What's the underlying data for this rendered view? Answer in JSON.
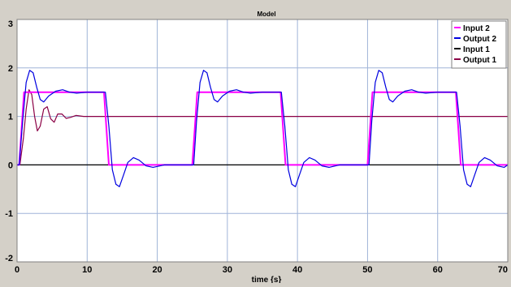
{
  "chart_data": {
    "type": "line",
    "title": "Model",
    "xlabel": "time {s}",
    "ylabel": "",
    "xlim": [
      0,
      70
    ],
    "ylim": [
      -2,
      3
    ],
    "x_ticks": [
      0,
      10,
      20,
      30,
      40,
      50,
      60,
      70
    ],
    "y_ticks": [
      -2,
      -1,
      0,
      1,
      2,
      3
    ],
    "grid": true,
    "legend_position": "top-right",
    "colors": {
      "plot_background": "#ffffff",
      "frame": "#d4d0c8",
      "grid": "#a0b4d8",
      "input_2": "#ff00ff",
      "output_2": "#0000e0",
      "input_1": "#000000",
      "output_1": "#8b0045"
    },
    "series": [
      {
        "name": "Input 2",
        "color": "#ff00ff",
        "points": [
          [
            0,
            0
          ],
          [
            0.3,
            0
          ],
          [
            1.0,
            1.5
          ],
          [
            12.4,
            1.5
          ],
          [
            13.1,
            0
          ],
          [
            25.0,
            0
          ],
          [
            25.7,
            1.5
          ],
          [
            37.6,
            1.5
          ],
          [
            38.3,
            0
          ],
          [
            50.0,
            0
          ],
          [
            50.7,
            1.5
          ],
          [
            62.6,
            1.5
          ],
          [
            63.3,
            0
          ],
          [
            70,
            0
          ]
        ]
      },
      {
        "name": "Output 2",
        "color": "#0000e0",
        "points": [
          [
            0,
            0
          ],
          [
            0.3,
            0
          ],
          [
            0.8,
            0.9
          ],
          [
            1.3,
            1.7
          ],
          [
            1.8,
            1.95
          ],
          [
            2.3,
            1.9
          ],
          [
            2.8,
            1.6
          ],
          [
            3.3,
            1.35
          ],
          [
            3.8,
            1.3
          ],
          [
            4.5,
            1.42
          ],
          [
            5.5,
            1.52
          ],
          [
            6.5,
            1.55
          ],
          [
            7.5,
            1.5
          ],
          [
            8.5,
            1.48
          ],
          [
            10,
            1.5
          ],
          [
            12.6,
            1.5
          ],
          [
            13.1,
            0.8
          ],
          [
            13.6,
            -0.1
          ],
          [
            14.1,
            -0.4
          ],
          [
            14.6,
            -0.45
          ],
          [
            15.2,
            -0.2
          ],
          [
            15.8,
            0.05
          ],
          [
            16.6,
            0.15
          ],
          [
            17.4,
            0.1
          ],
          [
            18.4,
            -0.02
          ],
          [
            19.4,
            -0.05
          ],
          [
            21,
            0
          ],
          [
            25.2,
            0
          ],
          [
            25.6,
            0.9
          ],
          [
            26.1,
            1.7
          ],
          [
            26.6,
            1.95
          ],
          [
            27.1,
            1.9
          ],
          [
            27.6,
            1.6
          ],
          [
            28.1,
            1.35
          ],
          [
            28.6,
            1.3
          ],
          [
            29.3,
            1.42
          ],
          [
            30.3,
            1.52
          ],
          [
            31.3,
            1.55
          ],
          [
            32.3,
            1.5
          ],
          [
            33.3,
            1.48
          ],
          [
            35,
            1.5
          ],
          [
            37.7,
            1.5
          ],
          [
            38.2,
            0.8
          ],
          [
            38.7,
            -0.1
          ],
          [
            39.2,
            -0.4
          ],
          [
            39.7,
            -0.45
          ],
          [
            40.3,
            -0.2
          ],
          [
            40.9,
            0.05
          ],
          [
            41.7,
            0.15
          ],
          [
            42.5,
            0.1
          ],
          [
            43.5,
            -0.02
          ],
          [
            44.5,
            -0.05
          ],
          [
            46,
            0
          ],
          [
            50.2,
            0
          ],
          [
            50.6,
            0.9
          ],
          [
            51.1,
            1.7
          ],
          [
            51.6,
            1.95
          ],
          [
            52.1,
            1.9
          ],
          [
            52.6,
            1.6
          ],
          [
            53.1,
            1.35
          ],
          [
            53.6,
            1.3
          ],
          [
            54.3,
            1.42
          ],
          [
            55.3,
            1.52
          ],
          [
            56.3,
            1.55
          ],
          [
            57.3,
            1.5
          ],
          [
            58.3,
            1.48
          ],
          [
            60,
            1.5
          ],
          [
            62.7,
            1.5
          ],
          [
            63.2,
            0.8
          ],
          [
            63.7,
            -0.1
          ],
          [
            64.2,
            -0.4
          ],
          [
            64.7,
            -0.45
          ],
          [
            65.3,
            -0.2
          ],
          [
            65.9,
            0.05
          ],
          [
            66.7,
            0.15
          ],
          [
            67.5,
            0.1
          ],
          [
            68.5,
            -0.02
          ],
          [
            69.5,
            -0.05
          ],
          [
            70,
            0
          ]
        ]
      },
      {
        "name": "Input 1",
        "color": "#000000",
        "points": [
          [
            0,
            0
          ],
          [
            70,
            0
          ]
        ]
      },
      {
        "name": "Output 1",
        "color": "#8b0045",
        "points": [
          [
            0,
            0
          ],
          [
            0.4,
            0
          ],
          [
            0.9,
            0.55
          ],
          [
            1.3,
            1.15
          ],
          [
            1.7,
            1.55
          ],
          [
            2.1,
            1.45
          ],
          [
            2.5,
            1.0
          ],
          [
            2.9,
            0.7
          ],
          [
            3.3,
            0.8
          ],
          [
            3.8,
            1.15
          ],
          [
            4.3,
            1.2
          ],
          [
            4.8,
            0.95
          ],
          [
            5.3,
            0.88
          ],
          [
            5.8,
            1.05
          ],
          [
            6.4,
            1.05
          ],
          [
            7.0,
            0.96
          ],
          [
            7.6,
            0.98
          ],
          [
            8.4,
            1.02
          ],
          [
            9.5,
            1.0
          ],
          [
            70,
            1.0
          ]
        ]
      }
    ]
  }
}
